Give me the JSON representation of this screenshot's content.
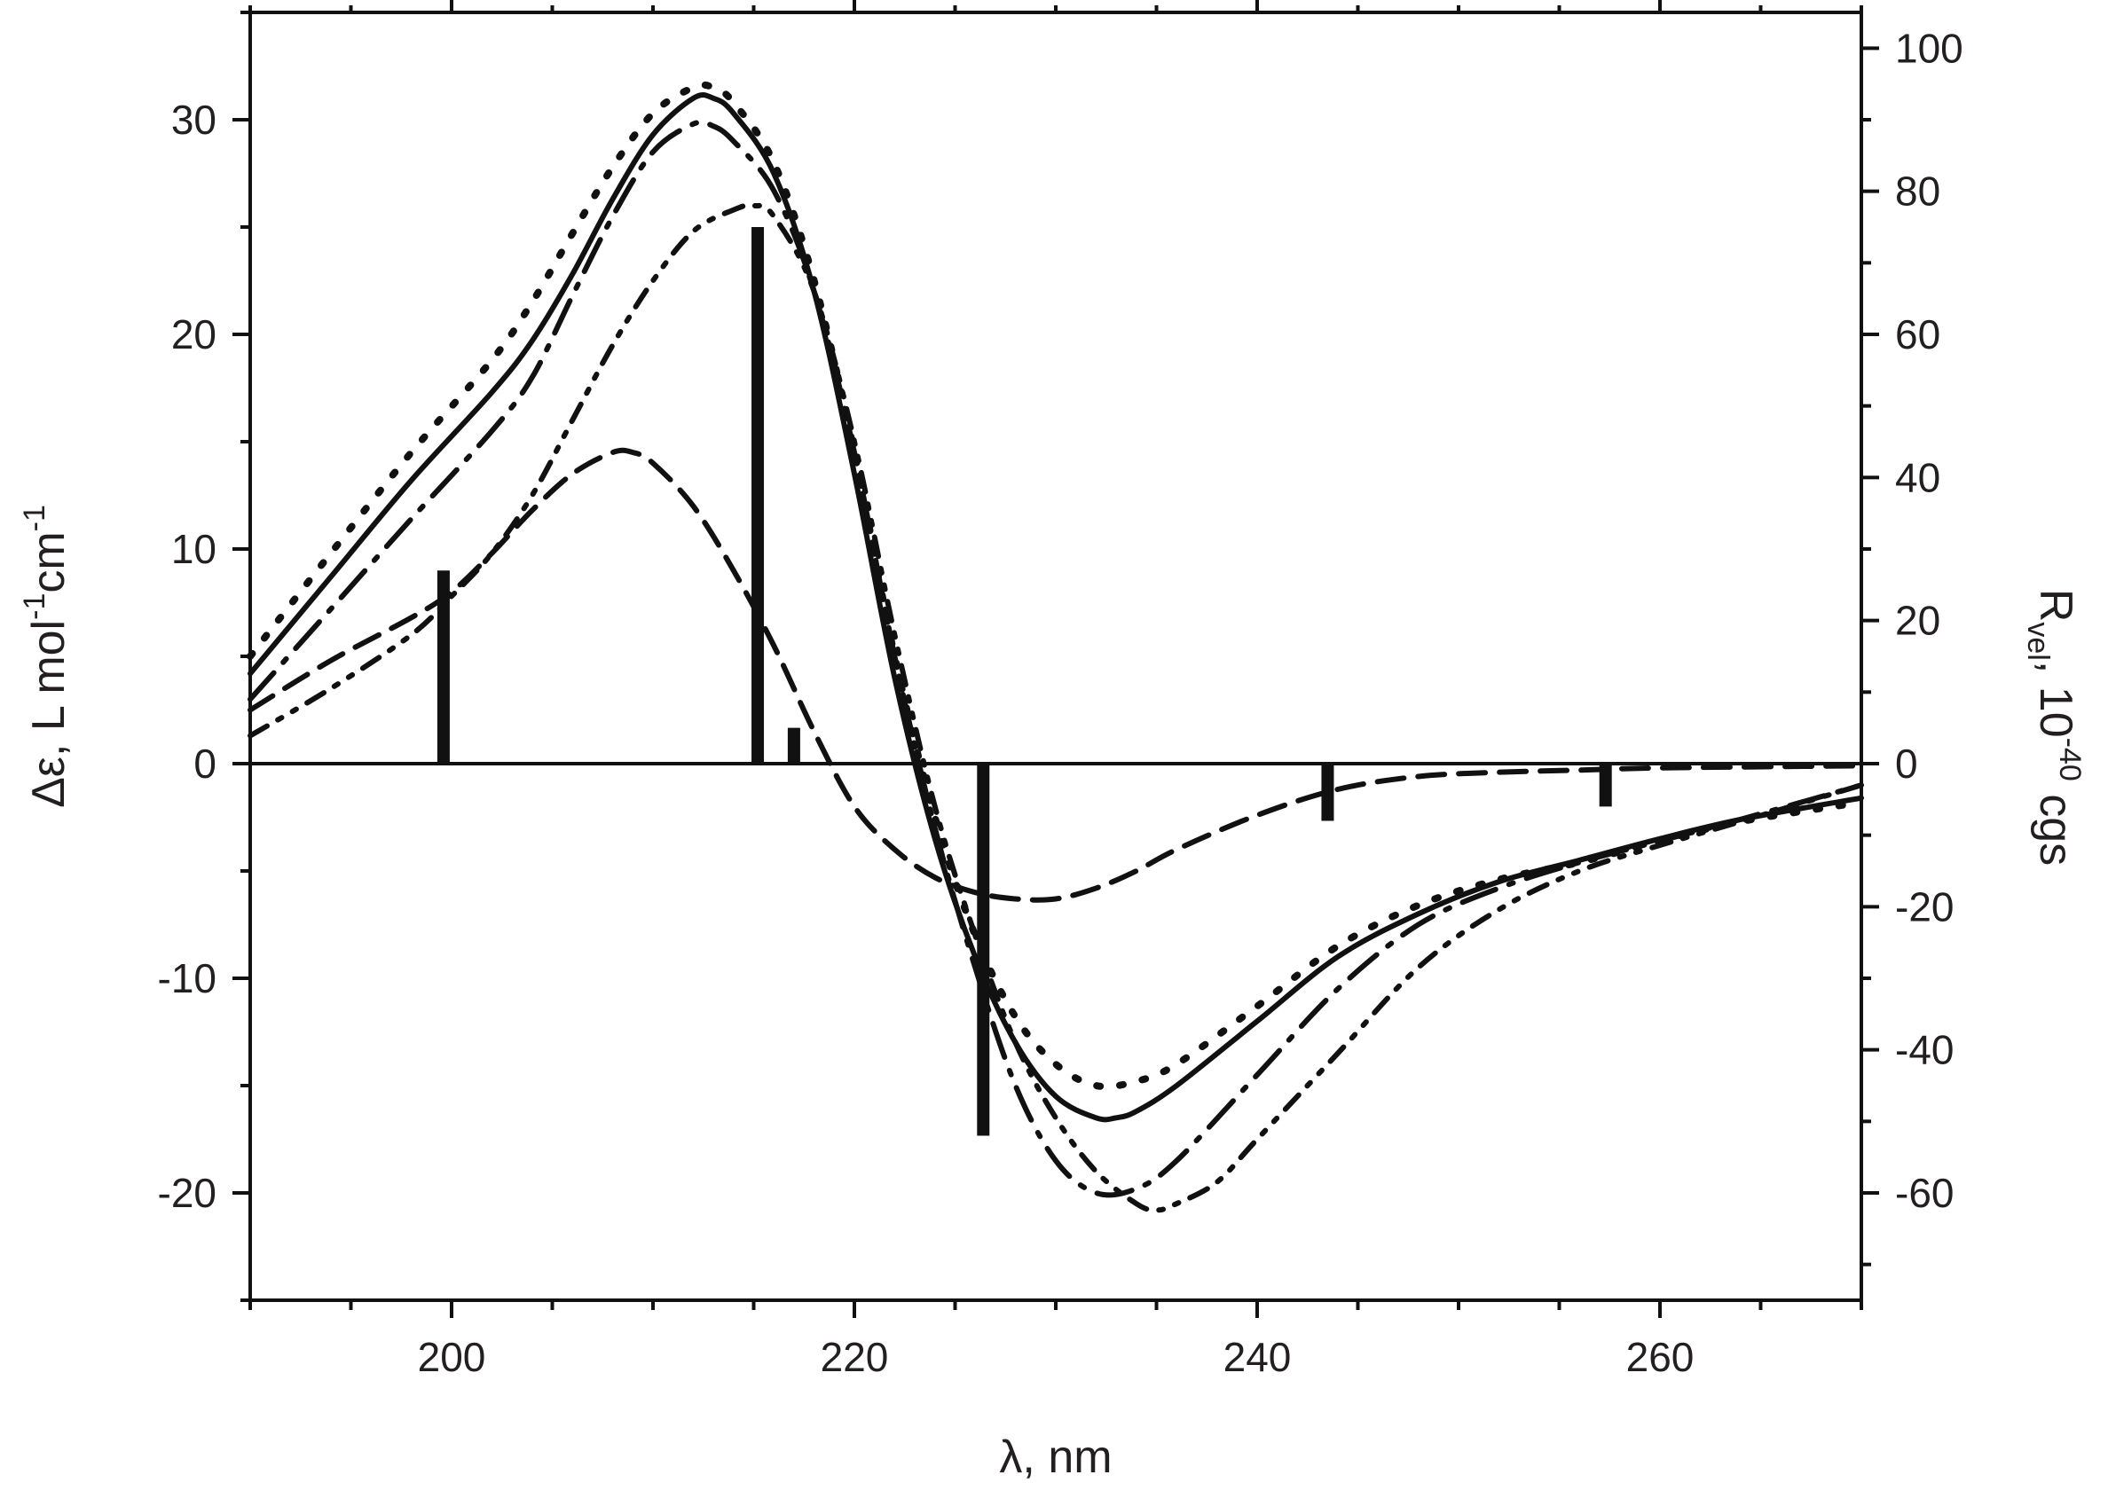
{
  "chart_data": {
    "type": "line",
    "title": "",
    "xlabel": "λ, nm",
    "ylabel": {
      "base": "Δε, L mol",
      "sup1": "-1",
      "mid": "cm",
      "sup2": "-1"
    },
    "y2label": {
      "base": "R",
      "sub": "vel",
      "mid": ", 10",
      "sup": "-40",
      "tail": " cgs"
    },
    "xlim": [
      190,
      270
    ],
    "ylim": [
      -25,
      35
    ],
    "y2lim": [
      -75,
      105
    ],
    "xticks": [
      200,
      220,
      240,
      260
    ],
    "yticks": [
      -20,
      -10,
      0,
      10,
      20,
      30
    ],
    "y2ticks": [
      -60,
      -40,
      -20,
      0,
      20,
      40,
      60,
      80,
      100
    ],
    "grid": false,
    "legend": "none",
    "color": "#111111",
    "series": [
      {
        "style": "solid",
        "x": [
          190,
          194,
          198,
          202,
          204,
          206,
          208,
          210,
          212,
          213,
          214,
          216,
          218,
          220,
          222,
          224,
          226,
          228,
          230,
          232,
          233,
          234,
          236,
          240,
          244,
          248,
          252,
          256,
          260,
          264,
          270
        ],
        "y": [
          4.2,
          8.7,
          13.2,
          17.3,
          19.7,
          22.8,
          26.3,
          29.3,
          31.0,
          31.0,
          30.3,
          27.5,
          22.0,
          13.5,
          4.0,
          -3.5,
          -9.0,
          -13.0,
          -15.5,
          -16.5,
          -16.5,
          -16.2,
          -15.0,
          -12.0,
          -9.0,
          -7.0,
          -5.5,
          -4.5,
          -3.5,
          -2.6,
          -1.6
        ]
      },
      {
        "style": "dotted",
        "x": [
          190,
          194,
          198,
          202,
          204,
          206,
          208,
          210,
          212,
          213,
          214,
          216,
          218,
          220,
          222,
          224,
          226,
          228,
          230,
          232,
          234,
          236,
          240,
          244,
          248,
          252,
          256,
          260,
          264,
          270
        ],
        "y": [
          5.0,
          9.8,
          14.5,
          18.8,
          21.5,
          24.7,
          27.8,
          30.3,
          31.5,
          31.5,
          30.8,
          28.0,
          22.5,
          14.5,
          5.0,
          -2.5,
          -8.0,
          -11.8,
          -14.0,
          -15.0,
          -14.8,
          -14.0,
          -11.3,
          -8.5,
          -6.6,
          -5.4,
          -4.6,
          -3.6,
          -2.7,
          -1.8
        ]
      },
      {
        "style": "dash-dot",
        "x": [
          190,
          194,
          198,
          202,
          204,
          206,
          208,
          210,
          212,
          213,
          214,
          216,
          218,
          220,
          222,
          224,
          226,
          228,
          230,
          232,
          234,
          236,
          240,
          244,
          248,
          252,
          256,
          260,
          264,
          270
        ],
        "y": [
          3.0,
          7.2,
          11.4,
          15.5,
          18.0,
          21.8,
          25.5,
          28.5,
          29.8,
          29.7,
          29.0,
          26.7,
          22.0,
          14.5,
          5.0,
          -3.0,
          -9.5,
          -15.0,
          -18.5,
          -20.0,
          -19.8,
          -18.5,
          -14.5,
          -10.5,
          -7.5,
          -5.8,
          -4.6,
          -3.6,
          -2.6,
          -1.0
        ]
      },
      {
        "style": "dash-dot-dot",
        "x": [
          190,
          194,
          198,
          200,
          202,
          204,
          206,
          208,
          210,
          212,
          214,
          215,
          216,
          218,
          220,
          222,
          224,
          226,
          228,
          230,
          232,
          234,
          235,
          236,
          238,
          240,
          244,
          248,
          252,
          256,
          260,
          264,
          270
        ],
        "y": [
          1.3,
          3.5,
          6.0,
          7.8,
          9.8,
          12.5,
          16.0,
          19.5,
          22.5,
          24.8,
          25.8,
          26.0,
          25.5,
          22.0,
          15.0,
          6.0,
          -2.0,
          -8.0,
          -13.0,
          -16.5,
          -19.0,
          -20.5,
          -20.8,
          -20.5,
          -19.5,
          -17.5,
          -13.5,
          -9.5,
          -6.8,
          -5.0,
          -3.8,
          -2.7,
          -1.0
        ]
      },
      {
        "style": "dashed",
        "x": [
          190,
          194,
          198,
          200,
          202,
          204,
          206,
          208,
          209,
          210,
          212,
          214,
          216,
          218,
          220,
          222,
          224,
          226,
          228,
          230,
          232,
          234,
          236,
          240,
          244,
          248,
          252,
          256,
          260,
          270
        ],
        "y": [
          2.5,
          4.8,
          6.8,
          8.0,
          9.8,
          11.8,
          13.5,
          14.5,
          14.5,
          14.0,
          12.0,
          9.0,
          5.5,
          1.5,
          -2.0,
          -4.0,
          -5.3,
          -6.0,
          -6.3,
          -6.3,
          -5.8,
          -5.0,
          -4.0,
          -2.4,
          -1.2,
          -0.6,
          -0.4,
          -0.3,
          -0.2,
          -0.1
        ]
      }
    ],
    "sticks": [
      {
        "x": 199.6,
        "value": 27
      },
      {
        "x": 215.2,
        "value": 75
      },
      {
        "x": 217.0,
        "value": 5
      },
      {
        "x": 226.4,
        "value": -52
      },
      {
        "x": 243.5,
        "value": -8
      },
      {
        "x": 257.3,
        "value": -6
      }
    ]
  }
}
